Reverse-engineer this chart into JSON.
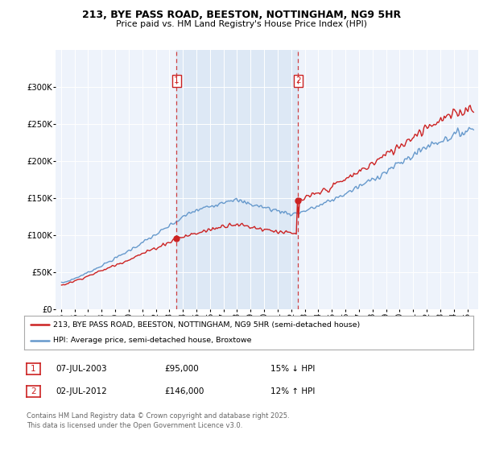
{
  "title": "213, BYE PASS ROAD, BEESTON, NOTTINGHAM, NG9 5HR",
  "subtitle": "Price paid vs. HM Land Registry's House Price Index (HPI)",
  "legend_line1": "213, BYE PASS ROAD, BEESTON, NOTTINGHAM, NG9 5HR (semi-detached house)",
  "legend_line2": "HPI: Average price, semi-detached house, Broxtowe",
  "sale1_date": "07-JUL-2003",
  "sale1_price": 95000,
  "sale1_label": "15% ↓ HPI",
  "sale2_date": "02-JUL-2012",
  "sale2_price": 146000,
  "sale2_label": "12% ↑ HPI",
  "footer": "Contains HM Land Registry data © Crown copyright and database right 2025.\nThis data is licensed under the Open Government Licence v3.0.",
  "hpi_color": "#6699cc",
  "price_color": "#cc2222",
  "vline_color": "#cc2222",
  "highlight_color": "#dde8f5",
  "bg_color": "#eef3fb",
  "ylim_max": 350000,
  "sale1_t": 2003.54,
  "sale2_t": 2012.5
}
